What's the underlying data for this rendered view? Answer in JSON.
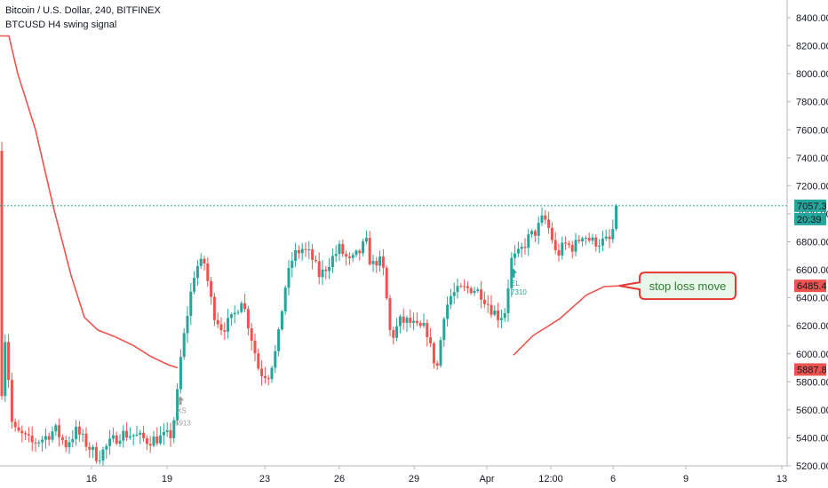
{
  "header": {
    "title": "Bitcoin / U.S. Dollar, 240, BITFINEX",
    "indicator": "BTCUSD H4 swing signal"
  },
  "colors": {
    "up": "#26a69a",
    "down": "#ef5350",
    "stop_line": "#ef5350",
    "last_price_line": "#26a69a",
    "callout_bg": "#e8f5e9",
    "callout_border": "#e53935",
    "callout_text": "#2e7d32",
    "signal_short": "#9e9e9e",
    "signal_long": "#26a69a"
  },
  "price_axis": {
    "ticks": [
      "8400.00",
      "8200.00",
      "8000.00",
      "7800.00",
      "7600.00",
      "7400.00",
      "7200.00",
      "7000.00",
      "6800.00",
      "6600.00",
      "6400.00",
      "6200.00",
      "6000.00",
      "5800.00",
      "5600.00",
      "5400.00",
      "5200.00"
    ],
    "last_price_label": "7057.3",
    "countdown_label": "20:39",
    "stop_label": "6485.4",
    "prior_stop_label": "5887.8"
  },
  "time_axis": {
    "ticks": [
      "16",
      "19",
      "23",
      "26",
      "29",
      "Apr",
      "12:00",
      "6",
      "9",
      "13"
    ]
  },
  "signals": [
    {
      "type": "short",
      "label": "XS",
      "price_label": "5913"
    },
    {
      "type": "long",
      "label": "EL",
      "price_label": "7310"
    }
  ],
  "annotation": {
    "text": "stop loss move"
  },
  "chart_data": {
    "type": "candlestick",
    "title": "Bitcoin / U.S. Dollar, 240, BITFINEX",
    "ylim": [
      5200,
      8500
    ],
    "x_ticks": [
      "16",
      "19",
      "23",
      "26",
      "29",
      "Apr",
      "12:00",
      "6",
      "9",
      "13"
    ],
    "last_price": 7057.3,
    "series": [
      {
        "name": "BTCUSD H4 swing signal",
        "type": "line",
        "points": [
          [
            0,
            8270
          ],
          [
            10,
            8270
          ],
          [
            20,
            8000
          ],
          [
            40,
            7600
          ],
          [
            60,
            7050
          ],
          [
            80,
            6560
          ],
          [
            95,
            6260
          ],
          [
            110,
            6170
          ],
          [
            130,
            6120
          ],
          [
            150,
            6060
          ],
          [
            170,
            5980
          ],
          [
            190,
            5920
          ],
          [
            200,
            5900
          ],
          [
            578,
            5990
          ],
          [
            600,
            6130
          ],
          [
            630,
            6250
          ],
          [
            660,
            6420
          ],
          [
            680,
            6480
          ],
          [
            700,
            6485.4
          ]
        ]
      }
    ],
    "signals": [
      {
        "type": "short",
        "label": "XS",
        "price": 5913
      },
      {
        "type": "long",
        "label": "EL",
        "price": 7310
      }
    ],
    "levels": [
      {
        "label": "stop loss move",
        "value": 6485.4
      },
      {
        "value": 5887.8
      }
    ]
  }
}
